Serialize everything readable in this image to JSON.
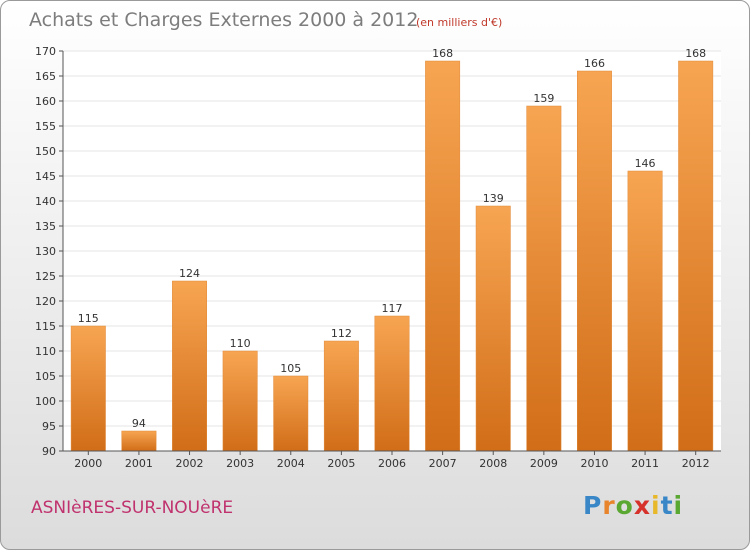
{
  "header": {
    "title": "Achats et Charges Externes 2000 à 2012",
    "subtitle": "(en milliers d'€)"
  },
  "footer": {
    "town": "ASNIèRES-SUR-NOUèRE",
    "logo_letters": [
      "P",
      "r",
      "o",
      "x",
      "i",
      "t",
      "i"
    ],
    "logo_colors": [
      "#3a87c8",
      "#e8842b",
      "#5aa832",
      "#d6312b",
      "#e8b82b",
      "#3a87c8",
      "#5aa832"
    ]
  },
  "chart_data": {
    "type": "bar",
    "categories": [
      "2000",
      "2001",
      "2002",
      "2003",
      "2004",
      "2005",
      "2006",
      "2007",
      "2008",
      "2009",
      "2010",
      "2011",
      "2012"
    ],
    "values": [
      115,
      94,
      124,
      110,
      105,
      112,
      117,
      168,
      139,
      159,
      166,
      146,
      168
    ],
    "value_labels": [
      "115",
      "94",
      "124",
      "110",
      "105",
      "112",
      "117",
      "168",
      "139",
      "159",
      "166",
      "146",
      "168"
    ],
    "ylim": [
      90,
      170
    ],
    "yticks": [
      "90",
      "95",
      "100",
      "105",
      "110",
      "115",
      "120",
      "125",
      "130",
      "135",
      "140",
      "145",
      "150",
      "155",
      "160",
      "165",
      "170"
    ],
    "grid": true,
    "bar_color_top": "#f7a552",
    "bar_color_bottom": "#d16d18",
    "grid_color": "#e6e6e6"
  }
}
